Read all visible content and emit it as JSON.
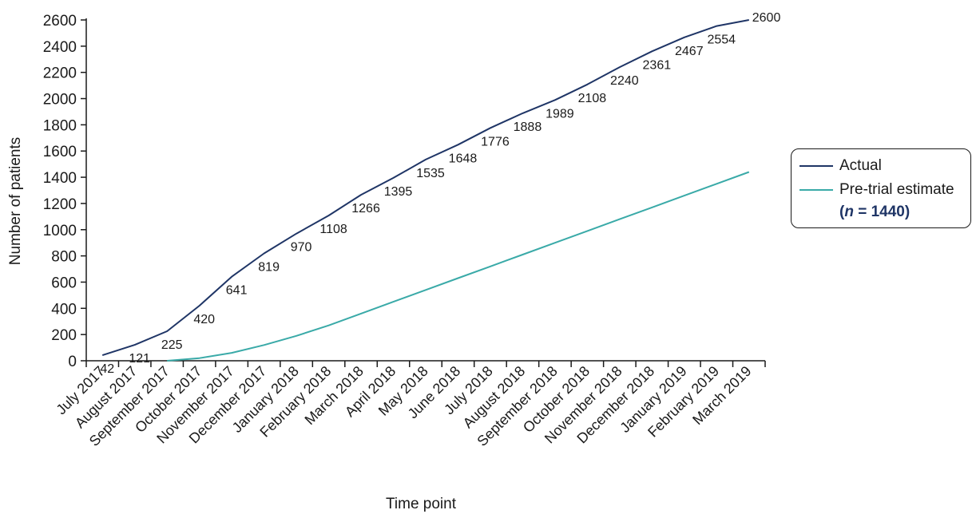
{
  "chart_data": {
    "type": "line",
    "xlabel": "Time point",
    "ylabel": "Number of patients",
    "ylim": [
      0,
      2600
    ],
    "yticks": [
      0,
      200,
      400,
      600,
      800,
      1000,
      1200,
      1400,
      1600,
      1800,
      2000,
      2200,
      2400,
      2600
    ],
    "categories": [
      "July 2017",
      "August 2017",
      "September 2017",
      "October 2017",
      "November 2017",
      "December 2017",
      "January 2018",
      "February 2018",
      "March 2018",
      "April 2018",
      "May 2018",
      "June 2018",
      "July 2018",
      "August 2018",
      "September 2018",
      "October 2018",
      "November 2018",
      "December 2018",
      "January 2019",
      "February 2019",
      "March 2019"
    ],
    "grid": false,
    "legend_position": "right",
    "series": [
      {
        "name": "Actual",
        "color": "#1f3566",
        "points": [
          [
            0,
            42
          ],
          [
            1,
            121
          ],
          [
            2,
            225
          ],
          [
            3,
            420
          ],
          [
            4,
            641
          ],
          [
            5,
            819
          ],
          [
            6,
            970
          ],
          [
            7,
            1108
          ],
          [
            8,
            1266
          ],
          [
            9,
            1395
          ],
          [
            10,
            1535
          ],
          [
            11,
            1648
          ],
          [
            12,
            1776
          ],
          [
            13,
            1888
          ],
          [
            14,
            1989
          ],
          [
            15,
            2108
          ],
          [
            16,
            2240
          ],
          [
            17,
            2361
          ],
          [
            18,
            2467
          ],
          [
            19,
            2554
          ],
          [
            20,
            2600
          ]
        ],
        "data_labels": [
          "42",
          "121",
          "225",
          "420",
          "641",
          "819",
          "970",
          "1108",
          "1266",
          "1395",
          "1535",
          "1648",
          "1776",
          "1888",
          "1989",
          "2108",
          "2240",
          "2361",
          "2467",
          "2554",
          "2600"
        ]
      },
      {
        "name": "Pre-trial estimate",
        "color": "#3aaaa8",
        "points": [
          [
            2,
            0
          ],
          [
            3,
            20
          ],
          [
            4,
            60
          ],
          [
            5,
            120
          ],
          [
            6,
            190
          ],
          [
            7,
            270
          ],
          [
            8,
            360
          ],
          [
            9,
            450
          ],
          [
            10,
            540
          ],
          [
            11,
            630
          ],
          [
            12,
            720
          ],
          [
            13,
            810
          ],
          [
            14,
            900
          ],
          [
            15,
            990
          ],
          [
            16,
            1080
          ],
          [
            17,
            1170
          ],
          [
            18,
            1260
          ],
          [
            19,
            1350
          ],
          [
            20,
            1440
          ]
        ]
      }
    ],
    "legend_note": {
      "prefix": "(",
      "n": "n",
      "equals": " = ",
      "value": "1440",
      "suffix": ")"
    }
  }
}
